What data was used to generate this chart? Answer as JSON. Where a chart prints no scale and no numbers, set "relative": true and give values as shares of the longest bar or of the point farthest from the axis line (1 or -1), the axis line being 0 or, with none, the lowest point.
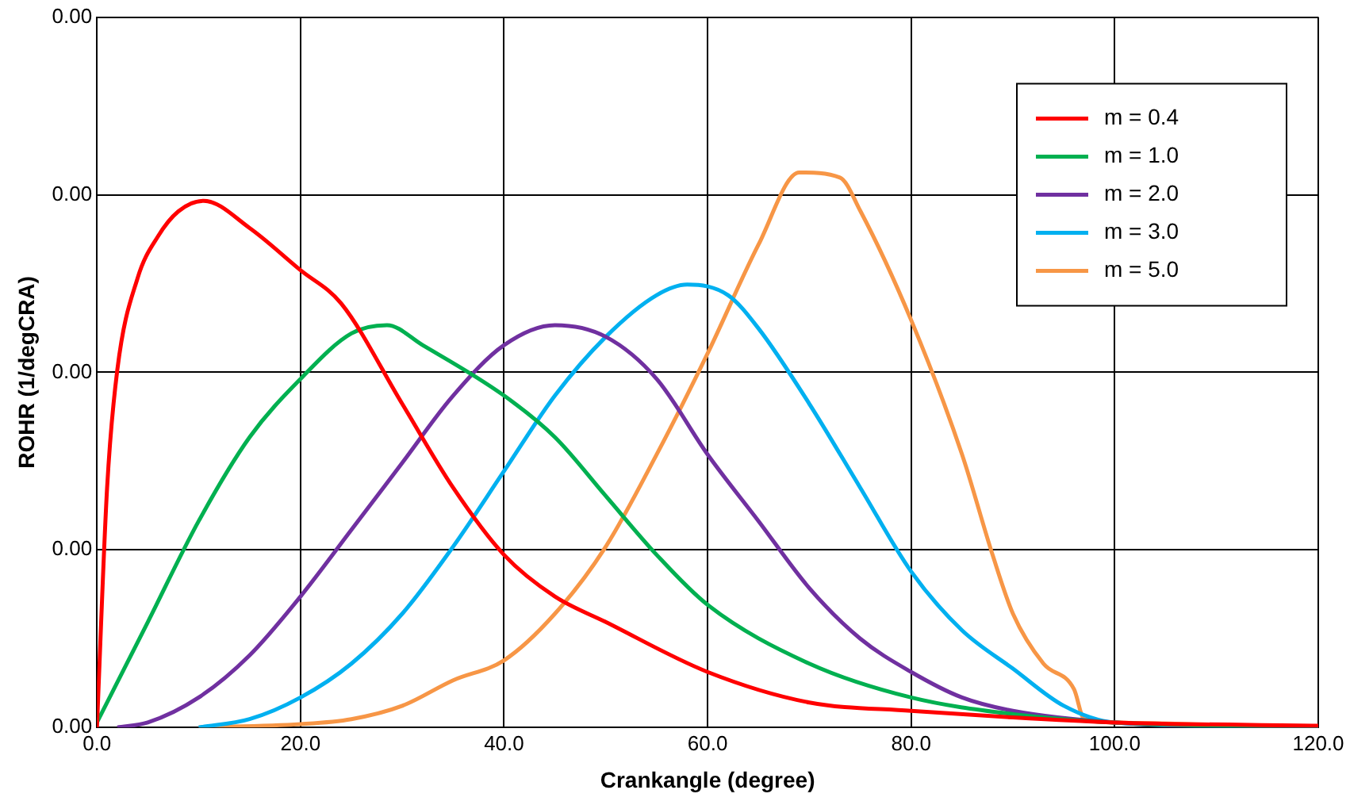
{
  "chart_data": {
    "type": "line",
    "xlabel": "Crankangle (degree)",
    "ylabel": "ROHR (1/degCRA)",
    "relative": true,
    "xlim": [
      0,
      120
    ],
    "xticks": [
      {
        "value": 0,
        "label": "0.0"
      },
      {
        "value": 20,
        "label": "20.0"
      },
      {
        "value": 40,
        "label": "40.0"
      },
      {
        "value": 60,
        "label": "60.0"
      },
      {
        "value": 80,
        "label": "80.0"
      },
      {
        "value": 100,
        "label": "100.0"
      },
      {
        "value": 120,
        "label": "120.0"
      }
    ],
    "annotations": [
      "0.00",
      "0.00",
      "0.00",
      "0.00",
      "0.00"
    ],
    "grid": true,
    "legend": "top right",
    "marker": "none",
    "line_style": "solid",
    "series": [
      {
        "name": "m = 0.4",
        "color": "#ff0000",
        "x": [
          0,
          1,
          2,
          4,
          6,
          8,
          10.5,
          15,
          20,
          24,
          30,
          35,
          40,
          45,
          50,
          60,
          70,
          80,
          90,
          100,
          120
        ],
        "values": [
          0,
          0.432,
          0.644,
          0.81,
          0.885,
          0.93,
          0.949,
          0.9,
          0.824,
          0.764,
          0.583,
          0.432,
          0.311,
          0.236,
          0.19,
          0.1,
          0.045,
          0.03,
          0.018,
          0.009,
          0.003
        ]
      },
      {
        "name": "m = 1.0",
        "color": "#00b050",
        "x": [
          0,
          5,
          10,
          15,
          20,
          25,
          28.5,
          32,
          40,
          45,
          50,
          55,
          60,
          70,
          80,
          90,
          100,
          120
        ],
        "values": [
          0.009,
          0.19,
          0.372,
          0.523,
          0.628,
          0.71,
          0.725,
          0.689,
          0.598,
          0.523,
          0.417,
          0.311,
          0.221,
          0.115,
          0.054,
          0.024,
          0.009,
          0
        ]
      },
      {
        "name": "m = 2.0",
        "color": "#7030a0",
        "x": [
          2,
          5,
          10,
          15,
          20,
          25,
          30,
          35,
          40,
          45,
          50,
          55,
          60,
          65,
          70,
          75,
          80,
          85,
          90,
          100,
          120
        ],
        "values": [
          0,
          0.009,
          0.054,
          0.13,
          0.236,
          0.356,
          0.477,
          0.598,
          0.689,
          0.725,
          0.704,
          0.628,
          0.492,
          0.372,
          0.251,
          0.16,
          0.1,
          0.054,
          0.03,
          0.009,
          0
        ]
      },
      {
        "name": "m = 3.0",
        "color": "#00b0f0",
        "x": [
          10,
          15,
          20,
          25,
          30,
          35,
          40,
          45,
          50,
          55,
          58,
          62,
          65,
          70,
          75,
          80,
          85,
          90,
          95,
          100,
          120
        ],
        "values": [
          0,
          0.015,
          0.054,
          0.115,
          0.205,
          0.326,
          0.462,
          0.598,
          0.704,
          0.779,
          0.798,
          0.779,
          0.719,
          0.583,
          0.432,
          0.281,
          0.175,
          0.106,
          0.039,
          0.009,
          0
        ]
      },
      {
        "name": "m = 5.0",
        "color": "#f79646",
        "x": [
          10,
          20,
          25,
          30,
          35,
          40,
          45,
          50,
          55,
          60,
          65,
          69,
          73,
          75,
          80,
          85,
          88,
          90,
          93,
          96,
          97,
          100,
          120
        ],
        "values": [
          0,
          0.006,
          0.015,
          0.039,
          0.085,
          0.121,
          0.205,
          0.326,
          0.492,
          0.674,
          0.87,
          1,
          0.991,
          0.931,
          0.734,
          0.492,
          0.311,
          0.205,
          0.115,
          0.069,
          0.015,
          0.009,
          0
        ]
      }
    ]
  }
}
